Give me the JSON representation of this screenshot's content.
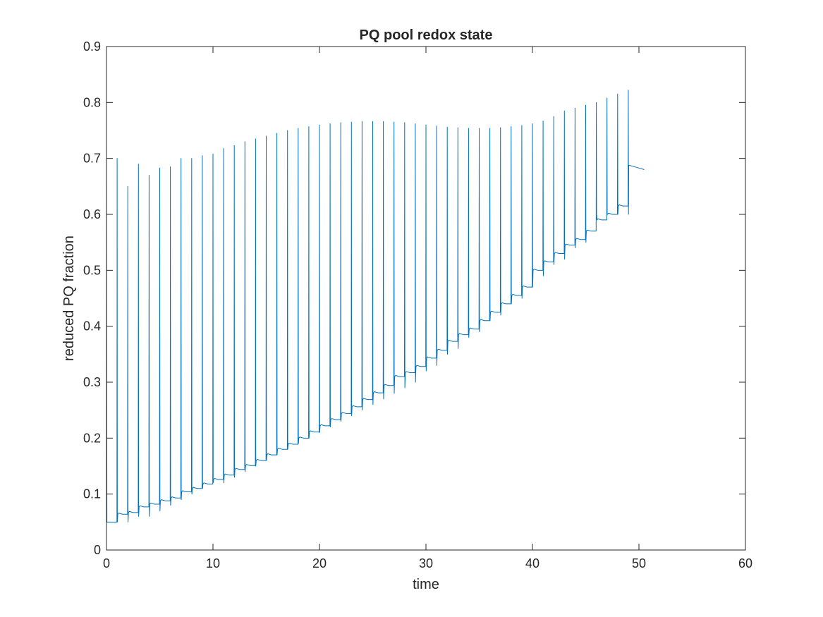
{
  "chart_data": {
    "type": "line",
    "title": "PQ pool redox state",
    "xlabel": "time",
    "ylabel": "reduced PQ fraction",
    "xlim": [
      0,
      60
    ],
    "ylim": [
      0,
      0.9
    ],
    "xticks": [
      0,
      10,
      20,
      30,
      40,
      50,
      60
    ],
    "yticks": [
      0,
      0.1,
      0.2,
      0.3,
      0.4,
      0.5,
      0.6,
      0.7,
      0.8,
      0.9
    ],
    "xtick_labels": [
      "0",
      "10",
      "20",
      "30",
      "40",
      "50",
      "60"
    ],
    "ytick_labels": [
      "0",
      "0.1",
      "0.2",
      "0.3",
      "0.4",
      "0.5",
      "0.6",
      "0.7",
      "0.8",
      "0.9"
    ],
    "grid": false,
    "box": true,
    "line_color": "#0072BD",
    "series": [
      {
        "pulse_period": 1,
        "pulse_times": [
          1,
          2,
          3,
          4,
          5,
          6,
          7,
          8,
          9,
          10,
          11,
          12,
          13,
          14,
          15,
          16,
          17,
          18,
          19,
          20,
          21,
          22,
          23,
          24,
          25,
          26,
          27,
          28,
          29,
          30,
          31,
          32,
          33,
          34,
          35,
          36,
          37,
          38,
          39,
          40,
          41,
          42,
          43,
          44,
          45,
          46,
          47,
          48,
          49
        ],
        "peak_values": [
          0.7,
          0.65,
          0.69,
          0.67,
          0.683,
          0.685,
          0.7,
          0.7,
          0.705,
          0.708,
          0.718,
          0.723,
          0.73,
          0.735,
          0.74,
          0.745,
          0.75,
          0.754,
          0.757,
          0.76,
          0.762,
          0.764,
          0.765,
          0.766,
          0.766,
          0.766,
          0.765,
          0.764,
          0.762,
          0.76,
          0.758,
          0.756,
          0.755,
          0.754,
          0.754,
          0.754,
          0.755,
          0.757,
          0.759,
          0.762,
          0.767,
          0.775,
          0.785,
          0.79,
          0.795,
          0.8,
          0.808,
          0.815,
          0.822
        ],
        "trough_values": [
          0.05,
          0.064,
          0.067,
          0.077,
          0.082,
          0.088,
          0.093,
          0.104,
          0.11,
          0.118,
          0.126,
          0.134,
          0.144,
          0.151,
          0.16,
          0.17,
          0.18,
          0.189,
          0.2,
          0.211,
          0.222,
          0.233,
          0.244,
          0.256,
          0.269,
          0.281,
          0.294,
          0.31,
          0.317,
          0.328,
          0.343,
          0.357,
          0.373,
          0.385,
          0.395,
          0.41,
          0.425,
          0.44,
          0.455,
          0.47,
          0.5,
          0.515,
          0.53,
          0.545,
          0.555,
          0.57,
          0.59,
          0.6,
          0.615
        ],
        "post_pulse_dip": [
          0.05,
          0.05,
          0.06,
          0.06,
          0.07,
          0.08,
          0.09,
          0.1,
          0.11,
          0.12,
          0.12,
          0.13,
          0.14,
          0.15,
          0.16,
          0.17,
          0.18,
          0.19,
          0.2,
          0.21,
          0.22,
          0.23,
          0.24,
          0.25,
          0.26,
          0.27,
          0.28,
          0.29,
          0.3,
          0.32,
          0.33,
          0.35,
          0.36,
          0.38,
          0.39,
          0.41,
          0.42,
          0.44,
          0.45,
          0.47,
          0.49,
          0.51,
          0.52,
          0.54,
          0.55,
          0.6,
          0.6,
          0.6,
          0.6
        ],
        "initial_value": 0.73,
        "final_x": 50.5,
        "final_value": 0.68,
        "final_start_value": 0.688
      }
    ]
  }
}
